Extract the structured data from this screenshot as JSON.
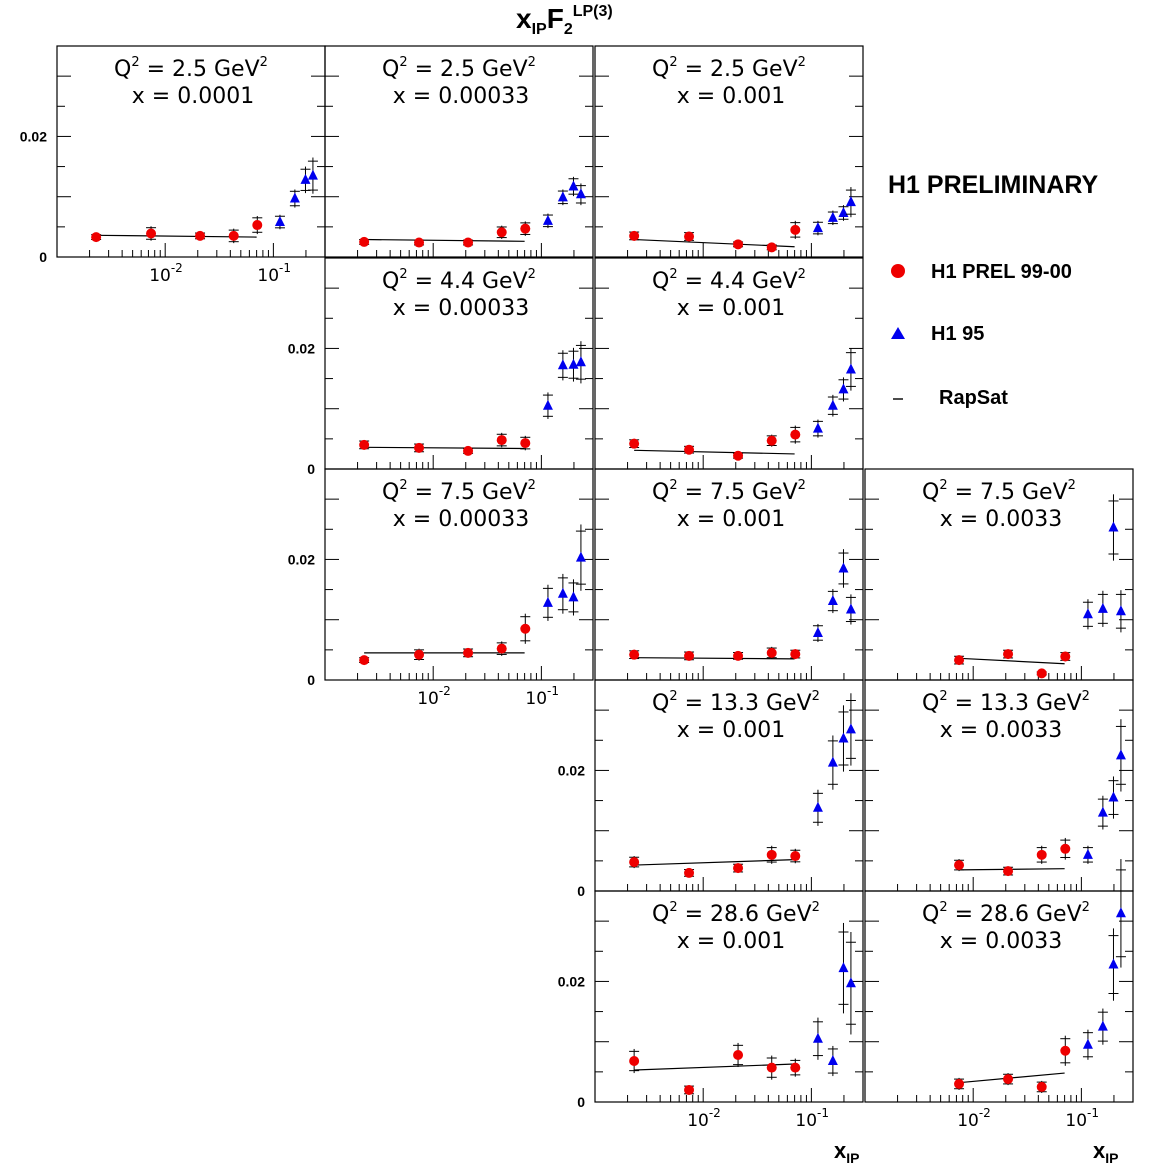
{
  "chart_data": {
    "type": "scatter",
    "title": "x_IP F_2^LP(3)",
    "title_main": "x",
    "title_sub1": "IP",
    "title_mid": "F",
    "title_sub2": "2",
    "title_sup": "LP(3)",
    "xlabel": "x",
    "xlabel_sub": "IP",
    "xscale": "log",
    "xlim": [
      0.001,
      0.3
    ],
    "ylim": [
      0,
      0.035
    ],
    "y_ticks": [
      "0",
      "0.02"
    ],
    "x_ticks": [
      {
        "base": "10",
        "exp": "-2"
      },
      {
        "base": "10",
        "exp": "-1"
      }
    ],
    "legend": {
      "heading": "H1 PRELIMINARY",
      "entries": [
        {
          "name": "H1 PREL 99-00",
          "marker": "circle",
          "color": "#ee0000"
        },
        {
          "name": "H1 95",
          "marker": "triangle",
          "color": "#0000ee"
        },
        {
          "name": "RapSat",
          "marker": "line",
          "color": "#000000"
        }
      ]
    },
    "panels": [
      {
        "q2_label": "Q",
        "q2_exp": "2",
        "q2_val": " = 2.5 GeV",
        "q2_unit_exp": "2",
        "x_label": "x = 0.0001",
        "red": [
          {
            "x": 0.0023,
            "y": 0.0033,
            "e": 0.0005
          },
          {
            "x": 0.0074,
            "y": 0.0039,
            "e": 0.0012
          },
          {
            "x": 0.021,
            "y": 0.0035,
            "e": 0.0006
          },
          {
            "x": 0.043,
            "y": 0.0035,
            "e": 0.0012
          },
          {
            "x": 0.071,
            "y": 0.0053,
            "e": 0.0015
          }
        ],
        "blue": [
          {
            "x": 0.115,
            "y": 0.0058,
            "e": 0.0012
          },
          {
            "x": 0.158,
            "y": 0.0097,
            "e": 0.0015
          },
          {
            "x": 0.198,
            "y": 0.0128,
            "e": 0.0022
          },
          {
            "x": 0.232,
            "y": 0.0135,
            "e": 0.003
          }
        ],
        "fit": [
          [
            0.0023,
            0.0036
          ],
          [
            0.07,
            0.0033
          ]
        ]
      },
      {
        "q2_label": "Q",
        "q2_exp": "2",
        "q2_val": " = 2.5 GeV",
        "q2_unit_exp": "2",
        "x_label": "x = 0.00033",
        "red": [
          {
            "x": 0.0023,
            "y": 0.0025,
            "e": 0.0005
          },
          {
            "x": 0.0074,
            "y": 0.0024,
            "e": 0.0005
          },
          {
            "x": 0.021,
            "y": 0.0024,
            "e": 0.0005
          },
          {
            "x": 0.043,
            "y": 0.0041,
            "e": 0.0011
          },
          {
            "x": 0.071,
            "y": 0.0047,
            "e": 0.0012
          }
        ],
        "blue": [
          {
            "x": 0.115,
            "y": 0.006,
            "e": 0.0012
          },
          {
            "x": 0.158,
            "y": 0.0099,
            "e": 0.0013
          },
          {
            "x": 0.198,
            "y": 0.0117,
            "e": 0.0016
          },
          {
            "x": 0.232,
            "y": 0.0104,
            "e": 0.0018
          }
        ],
        "fit": [
          [
            0.0023,
            0.0029
          ],
          [
            0.07,
            0.0026
          ]
        ]
      },
      {
        "q2_label": "Q",
        "q2_exp": "2",
        "q2_val": " = 2.5 GeV",
        "q2_unit_exp": "2",
        "x_label": "x = 0.001",
        "red": [
          {
            "x": 0.0023,
            "y": 0.0035,
            "e": 0.0008
          },
          {
            "x": 0.0074,
            "y": 0.0034,
            "e": 0.0008
          },
          {
            "x": 0.021,
            "y": 0.0021,
            "e": 0.0005
          },
          {
            "x": 0.043,
            "y": 0.0016,
            "e": 0.0005
          },
          {
            "x": 0.071,
            "y": 0.0045,
            "e": 0.0015
          }
        ],
        "blue": [
          {
            "x": 0.115,
            "y": 0.0048,
            "e": 0.0012
          },
          {
            "x": 0.158,
            "y": 0.0065,
            "e": 0.0012
          },
          {
            "x": 0.198,
            "y": 0.0073,
            "e": 0.0013
          },
          {
            "x": 0.232,
            "y": 0.0091,
            "e": 0.0025
          }
        ],
        "fit": [
          [
            0.0023,
            0.0029
          ],
          [
            0.07,
            0.0017
          ]
        ]
      },
      {
        "q2_label": "Q",
        "q2_exp": "2",
        "q2_val": " = 4.4 GeV",
        "q2_unit_exp": "2",
        "x_label": "x = 0.00033",
        "red": [
          {
            "x": 0.0023,
            "y": 0.004,
            "e": 0.0008
          },
          {
            "x": 0.0074,
            "y": 0.0035,
            "e": 0.0008
          },
          {
            "x": 0.021,
            "y": 0.003,
            "e": 0.0005
          },
          {
            "x": 0.043,
            "y": 0.0048,
            "e": 0.0012
          },
          {
            "x": 0.071,
            "y": 0.0043,
            "e": 0.0012
          }
        ],
        "blue": [
          {
            "x": 0.115,
            "y": 0.0105,
            "e": 0.0022
          },
          {
            "x": 0.158,
            "y": 0.0172,
            "e": 0.0025
          },
          {
            "x": 0.198,
            "y": 0.0173,
            "e": 0.0028
          },
          {
            "x": 0.232,
            "y": 0.0177,
            "e": 0.0035
          }
        ],
        "fit": [
          [
            0.0023,
            0.0036
          ],
          [
            0.07,
            0.0034
          ]
        ]
      },
      {
        "q2_label": "Q",
        "q2_exp": "2",
        "q2_val": " = 4.4 GeV",
        "q2_unit_exp": "2",
        "x_label": "x = 0.001",
        "red": [
          {
            "x": 0.0023,
            "y": 0.0042,
            "e": 0.0008
          },
          {
            "x": 0.0074,
            "y": 0.0032,
            "e": 0.0007
          },
          {
            "x": 0.021,
            "y": 0.0022,
            "e": 0.0005
          },
          {
            "x": 0.043,
            "y": 0.0047,
            "e": 0.001
          },
          {
            "x": 0.071,
            "y": 0.0057,
            "e": 0.0015
          }
        ],
        "blue": [
          {
            "x": 0.115,
            "y": 0.0067,
            "e": 0.0015
          },
          {
            "x": 0.158,
            "y": 0.0105,
            "e": 0.0018
          },
          {
            "x": 0.198,
            "y": 0.0132,
            "e": 0.002
          },
          {
            "x": 0.232,
            "y": 0.0165,
            "e": 0.0035
          }
        ],
        "fit": [
          [
            0.0023,
            0.0031
          ],
          [
            0.07,
            0.0025
          ]
        ]
      },
      {
        "q2_label": "Q",
        "q2_exp": "2",
        "q2_val": " = 7.5 GeV",
        "q2_unit_exp": "2",
        "x_label": "x = 0.00033",
        "red": [
          {
            "x": 0.0023,
            "y": 0.0033,
            "e": 0.0005
          },
          {
            "x": 0.0074,
            "y": 0.0042,
            "e": 0.001
          },
          {
            "x": 0.021,
            "y": 0.0045,
            "e": 0.0008
          },
          {
            "x": 0.043,
            "y": 0.0052,
            "e": 0.0012
          },
          {
            "x": 0.071,
            "y": 0.0085,
            "e": 0.0025
          }
        ],
        "blue": [
          {
            "x": 0.115,
            "y": 0.0128,
            "e": 0.003
          },
          {
            "x": 0.158,
            "y": 0.0143,
            "e": 0.0033
          },
          {
            "x": 0.198,
            "y": 0.0137,
            "e": 0.003
          },
          {
            "x": 0.232,
            "y": 0.0203,
            "e": 0.0055
          }
        ],
        "fit": [
          [
            0.0023,
            0.0045
          ],
          [
            0.07,
            0.0045
          ]
        ]
      },
      {
        "q2_label": "Q",
        "q2_exp": "2",
        "q2_val": " = 7.5 GeV",
        "q2_unit_exp": "2",
        "x_label": "x = 0.001",
        "red": [
          {
            "x": 0.0023,
            "y": 0.0042,
            "e": 0.0008
          },
          {
            "x": 0.0074,
            "y": 0.004,
            "e": 0.0008
          },
          {
            "x": 0.021,
            "y": 0.004,
            "e": 0.0007
          },
          {
            "x": 0.043,
            "y": 0.0045,
            "e": 0.001
          },
          {
            "x": 0.071,
            "y": 0.0043,
            "e": 0.0008
          }
        ],
        "blue": [
          {
            "x": 0.115,
            "y": 0.0078,
            "e": 0.0015
          },
          {
            "x": 0.158,
            "y": 0.0131,
            "e": 0.002
          },
          {
            "x": 0.198,
            "y": 0.0185,
            "e": 0.0032
          },
          {
            "x": 0.232,
            "y": 0.0117,
            "e": 0.0025
          }
        ],
        "fit": [
          [
            0.0023,
            0.0037
          ],
          [
            0.07,
            0.0035
          ]
        ]
      },
      {
        "q2_label": "Q",
        "q2_exp": "2",
        "q2_val": " = 7.5 GeV",
        "q2_unit_exp": "2",
        "x_label": "x = 0.0033",
        "red": [
          {
            "x": 0.0074,
            "y": 0.0033,
            "e": 0.0008
          },
          {
            "x": 0.021,
            "y": 0.0043,
            "e": 0.0008
          },
          {
            "x": 0.043,
            "y": 0.0011,
            "e": 0.0003
          },
          {
            "x": 0.071,
            "y": 0.0039,
            "e": 0.0008
          }
        ],
        "blue": [
          {
            "x": 0.115,
            "y": 0.0109,
            "e": 0.0025
          },
          {
            "x": 0.158,
            "y": 0.0118,
            "e": 0.003
          },
          {
            "x": 0.198,
            "y": 0.0253,
            "e": 0.0055
          },
          {
            "x": 0.232,
            "y": 0.0114,
            "e": 0.0035
          }
        ],
        "fit": [
          [
            0.0074,
            0.0036
          ],
          [
            0.07,
            0.0027
          ]
        ]
      },
      {
        "q2_label": "Q",
        "q2_exp": "2",
        "q2_val": " = 13.3 GeV",
        "q2_unit_exp": "2",
        "x_label": "x = 0.001",
        "red": [
          {
            "x": 0.0023,
            "y": 0.0048,
            "e": 0.001
          },
          {
            "x": 0.0074,
            "y": 0.003,
            "e": 0.0007
          },
          {
            "x": 0.021,
            "y": 0.0038,
            "e": 0.0008
          },
          {
            "x": 0.043,
            "y": 0.006,
            "e": 0.0015
          },
          {
            "x": 0.071,
            "y": 0.0058,
            "e": 0.0012
          }
        ],
        "blue": [
          {
            "x": 0.115,
            "y": 0.0138,
            "e": 0.003
          },
          {
            "x": 0.158,
            "y": 0.0213,
            "e": 0.0045
          },
          {
            "x": 0.198,
            "y": 0.0253,
            "e": 0.0055
          },
          {
            "x": 0.232,
            "y": 0.0268,
            "e": 0.006
          }
        ],
        "fit": [
          [
            0.0023,
            0.0043
          ],
          [
            0.07,
            0.0052
          ]
        ]
      },
      {
        "q2_label": "Q",
        "q2_exp": "2",
        "q2_val": " = 13.3 GeV",
        "q2_unit_exp": "2",
        "x_label": "x = 0.0033",
        "red": [
          {
            "x": 0.0074,
            "y": 0.0043,
            "e": 0.001
          },
          {
            "x": 0.021,
            "y": 0.0033,
            "e": 0.0008
          },
          {
            "x": 0.043,
            "y": 0.006,
            "e": 0.0015
          },
          {
            "x": 0.071,
            "y": 0.007,
            "e": 0.0018
          }
        ],
        "blue": [
          {
            "x": 0.115,
            "y": 0.006,
            "e": 0.0015
          },
          {
            "x": 0.158,
            "y": 0.013,
            "e": 0.0028
          },
          {
            "x": 0.198,
            "y": 0.0155,
            "e": 0.0035
          },
          {
            "x": 0.232,
            "y": 0.0225,
            "e": 0.006
          }
        ],
        "fit": [
          [
            0.0074,
            0.0035
          ],
          [
            0.07,
            0.0037
          ]
        ]
      },
      {
        "q2_label": "Q",
        "q2_exp": "2",
        "q2_val": " = 28.6 GeV",
        "q2_unit_exp": "2",
        "x_label": "x = 0.001",
        "red": [
          {
            "x": 0.0023,
            "y": 0.0068,
            "e": 0.002
          },
          {
            "x": 0.0074,
            "y": 0.002,
            "e": 0.0008
          },
          {
            "x": 0.021,
            "y": 0.0078,
            "e": 0.002
          },
          {
            "x": 0.043,
            "y": 0.0057,
            "e": 0.002
          },
          {
            "x": 0.071,
            "y": 0.0057,
            "e": 0.0015
          }
        ],
        "blue": [
          {
            "x": 0.115,
            "y": 0.0105,
            "e": 0.0035
          },
          {
            "x": 0.158,
            "y": 0.0068,
            "e": 0.0025
          },
          {
            "x": 0.198,
            "y": 0.0222,
            "e": 0.0075
          },
          {
            "x": 0.232,
            "y": 0.0197,
            "e": 0.0085
          }
        ],
        "fit": [
          [
            0.0023,
            0.0053
          ],
          [
            0.07,
            0.0063
          ]
        ]
      },
      {
        "q2_label": "Q",
        "q2_exp": "2",
        "q2_val": " = 28.6 GeV",
        "q2_unit_exp": "2",
        "x_label": "x = 0.0033",
        "red": [
          {
            "x": 0.0074,
            "y": 0.003,
            "e": 0.001
          },
          {
            "x": 0.021,
            "y": 0.0038,
            "e": 0.001
          },
          {
            "x": 0.043,
            "y": 0.0025,
            "e": 0.001
          },
          {
            "x": 0.071,
            "y": 0.0085,
            "e": 0.0025
          }
        ],
        "blue": [
          {
            "x": 0.115,
            "y": 0.0095,
            "e": 0.0025
          },
          {
            "x": 0.158,
            "y": 0.0125,
            "e": 0.003
          },
          {
            "x": 0.198,
            "y": 0.0228,
            "e": 0.006
          },
          {
            "x": 0.232,
            "y": 0.0313,
            "e": 0.009
          }
        ],
        "fit": [
          [
            0.0074,
            0.0032
          ],
          [
            0.07,
            0.0048
          ]
        ]
      }
    ]
  }
}
